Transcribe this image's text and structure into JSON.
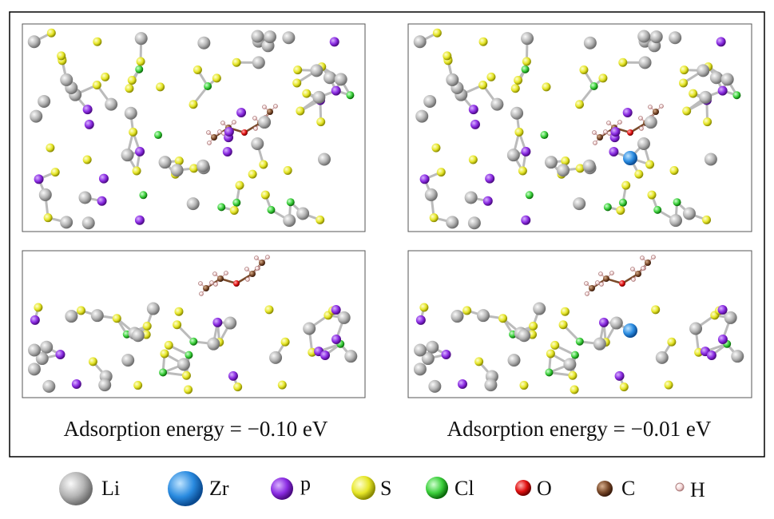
{
  "panels": [
    {
      "caption": "Adsorption energy = −0.10 eV"
    },
    {
      "caption": "Adsorption energy = −0.01 eV"
    }
  ],
  "legend": [
    {
      "label": "Li"
    },
    {
      "label": "Zr"
    },
    {
      "label": "p"
    },
    {
      "label": "S"
    },
    {
      "label": "Cl"
    },
    {
      "label": "O"
    },
    {
      "label": "C"
    },
    {
      "label": "H"
    }
  ]
}
